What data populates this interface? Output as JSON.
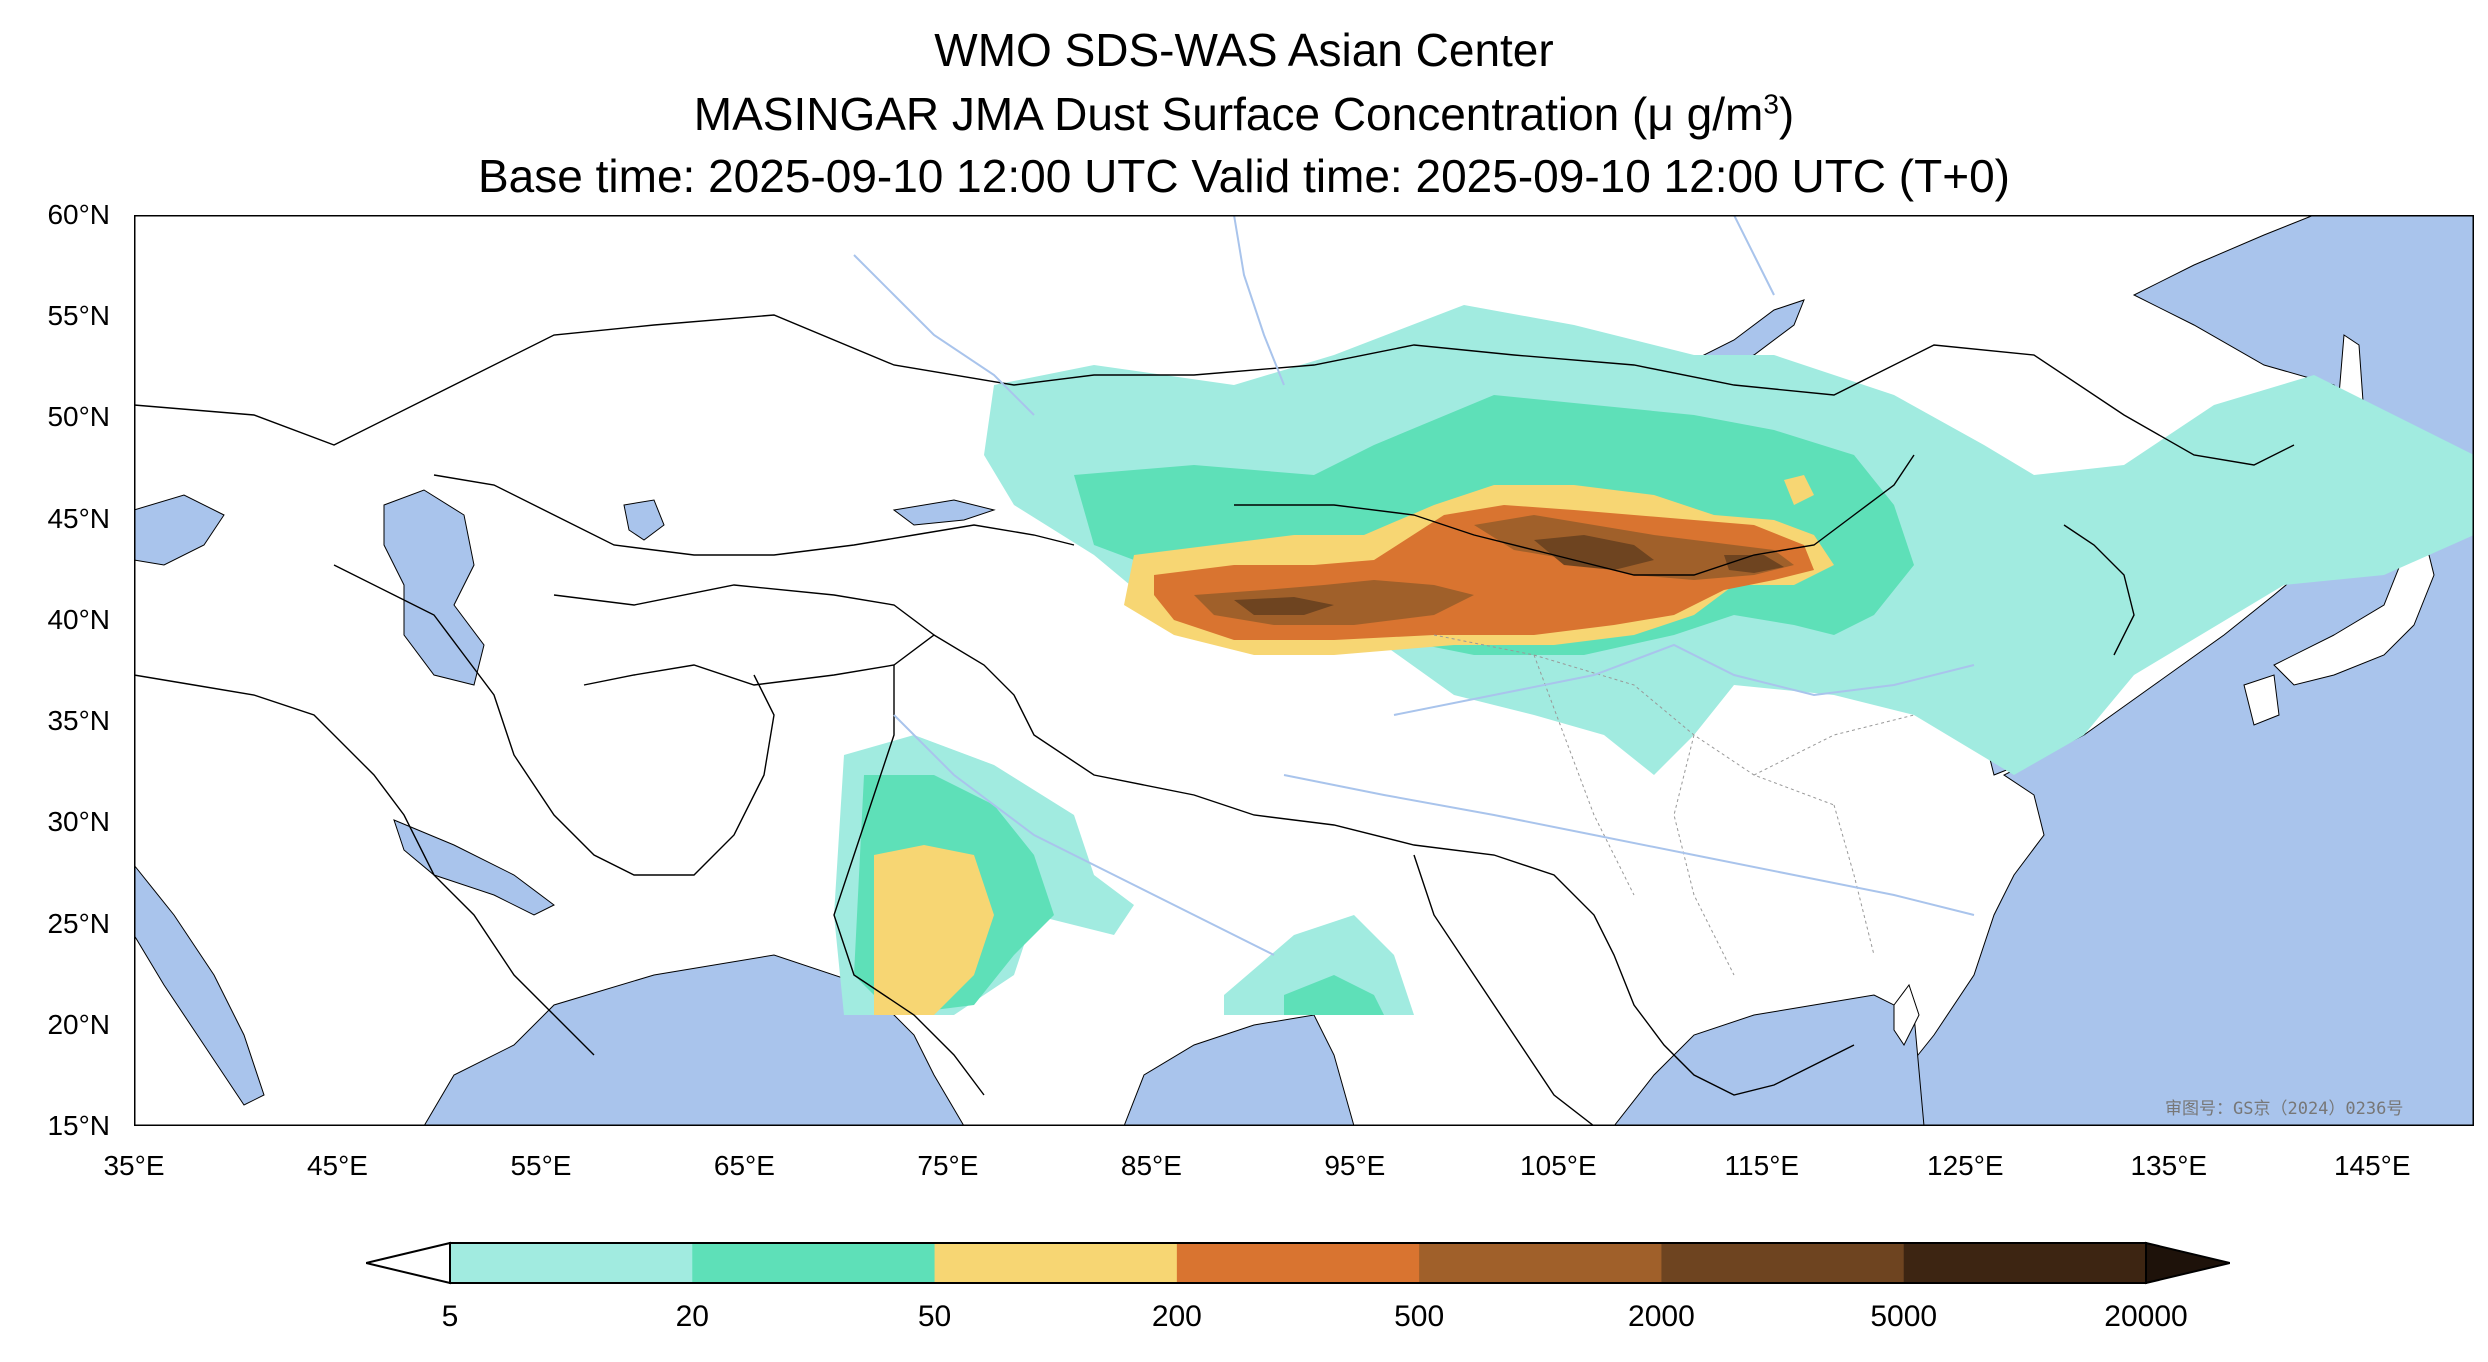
{
  "title": {
    "line1": "WMO SDS-WAS Asian Center",
    "line2_main": "MASINGAR JMA Dust Surface Concentration (μ g/m",
    "line2_sup": "3",
    "line2_end": ")",
    "line3": "Base time: 2025-09-10 12:00 UTC Valid time: 2025-09-10 12:00 UTC (T+0)"
  },
  "map": {
    "lon_ticks": [
      "35°E",
      "45°E",
      "55°E",
      "65°E",
      "75°E",
      "85°E",
      "95°E",
      "105°E",
      "115°E",
      "125°E",
      "135°E",
      "145°E"
    ],
    "lat_ticks": [
      "60°N",
      "55°N",
      "50°N",
      "45°N",
      "40°N",
      "35°N",
      "30°N",
      "25°N",
      "20°N",
      "15°N"
    ],
    "lon_range": [
      35,
      150
    ],
    "lat_range": [
      15,
      60
    ],
    "watermark": "审图号：GS京（2024）0236号",
    "colors": {
      "ocean": "#a9c4ec",
      "land": "#ffffff",
      "border": "#000000",
      "river": "#a9c4ec"
    }
  },
  "colorbar": {
    "levels": [
      "5",
      "20",
      "50",
      "200",
      "500",
      "2000",
      "5000",
      "20000"
    ],
    "colors": [
      "#a1ebe0",
      "#5ee0b8",
      "#f7d673",
      "#d97430",
      "#a0602a",
      "#6e4420",
      "#3d2512",
      "#1e120a"
    ],
    "extend": "both"
  }
}
